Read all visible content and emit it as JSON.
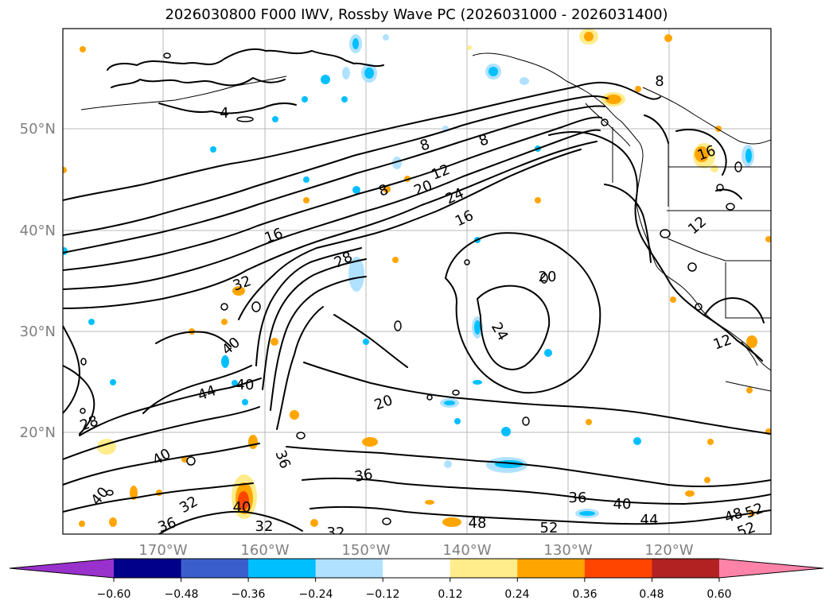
{
  "title": "2026030800 F000 IWV, Rossby Wave PC (2026031000 - 2026031400)",
  "map": {
    "lon_ticks": [
      "170°W",
      "160°W",
      "150°W",
      "140°W",
      "130°W",
      "120°W"
    ],
    "lat_ticks": [
      "50°N",
      "40°N",
      "30°N",
      "20°N"
    ],
    "contour_labels": [
      {
        "text": "4"
      },
      {
        "text": "8"
      },
      {
        "text": "8"
      },
      {
        "text": "8"
      },
      {
        "text": "8"
      },
      {
        "text": "12"
      },
      {
        "text": "12"
      },
      {
        "text": "12"
      },
      {
        "text": "16"
      },
      {
        "text": "16"
      },
      {
        "text": "16"
      },
      {
        "text": "20"
      },
      {
        "text": "20"
      },
      {
        "text": "20"
      },
      {
        "text": "24"
      },
      {
        "text": "24"
      },
      {
        "text": "28"
      },
      {
        "text": "28"
      },
      {
        "text": "32"
      },
      {
        "text": "32"
      },
      {
        "text": "32"
      },
      {
        "text": "32"
      },
      {
        "text": "36"
      },
      {
        "text": "36"
      },
      {
        "text": "36"
      },
      {
        "text": "36"
      },
      {
        "text": "40"
      },
      {
        "text": "40"
      },
      {
        "text": "40"
      },
      {
        "text": "40"
      },
      {
        "text": "40"
      },
      {
        "text": "40"
      },
      {
        "text": "44"
      },
      {
        "text": "44"
      },
      {
        "text": "48"
      },
      {
        "text": "48"
      },
      {
        "text": "52"
      },
      {
        "text": "52"
      },
      {
        "text": "52"
      }
    ]
  },
  "colorbar": {
    "ticks": [
      "−0.60",
      "−0.48",
      "−0.36",
      "−0.24",
      "−0.12",
      "0.12",
      "0.24",
      "0.36",
      "0.48",
      "0.60"
    ],
    "colors": [
      "#9932cc",
      "#00008b",
      "#3a5fcd",
      "#00bfff",
      "#b0e2ff",
      "#ffffff",
      "#ffec8b",
      "#ffa500",
      "#ff4500",
      "#b22222",
      "#ff83a8"
    ]
  }
}
